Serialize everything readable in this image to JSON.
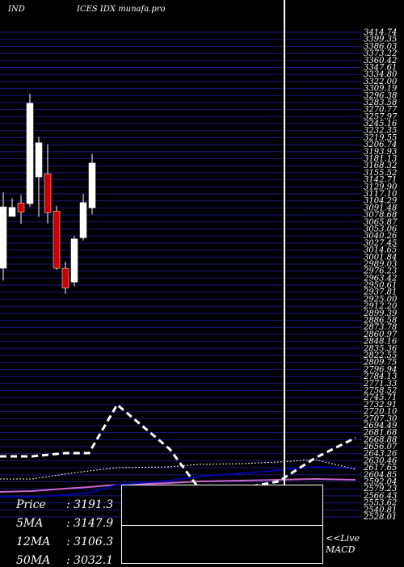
{
  "header": {
    "left_label": "IND",
    "right_label": "ICES IDX  munafa.pro"
  },
  "colors": {
    "background": "#000000",
    "grid": "#1a1a80",
    "bull": "#ffffff",
    "bear": "#cc0000",
    "ma_short": "#0000aa",
    "ma_long": "#cc66cc"
  },
  "chart_data": {
    "type": "candlestick",
    "ylim": [
      2512,
      3420
    ],
    "y_ticks": [
      "3414.74",
      "3399.35",
      "3386.03",
      "3373.22",
      "3360.42",
      "3347.61",
      "3334.80",
      "3322.00",
      "3309.19",
      "3296.38",
      "3283.58",
      "3270.77",
      "3257.97",
      "3245.16",
      "3232.35",
      "3219.55",
      "3206.74",
      "3193.93",
      "3181.13",
      "3168.32",
      "3155.52",
      "3142.71",
      "3129.90",
      "3117.10",
      "3104.29",
      "3091.48",
      "3078.68",
      "3065.87",
      "3053.06",
      "3040.26",
      "3027.45",
      "3014.65",
      "3001.84",
      "2989.03",
      "2976.23",
      "2963.42",
      "2950.61",
      "2937.81",
      "2925.00",
      "2912.20",
      "2899.39",
      "2886.58",
      "2873.78",
      "2860.97",
      "2848.16",
      "2835.36",
      "2822.55",
      "2809.75",
      "2796.94",
      "2784.13",
      "2771.33",
      "2758.52",
      "2745.71",
      "2732.91",
      "2720.10",
      "2707.30",
      "2694.49",
      "2681.68",
      "2668.88",
      "2656.07",
      "2643.26",
      "2630.46",
      "2617.65",
      "2604.85",
      "2592.04",
      "2579.23",
      "2566.43",
      "2553.62",
      "2540.81",
      "2528.01"
    ],
    "candles": [
      {
        "open": 3093,
        "high": 3120,
        "low": 2955,
        "close": 2978,
        "bull": true
      },
      {
        "open": 3092,
        "high": 3109,
        "low": 3075,
        "close": 3075,
        "bull": true
      },
      {
        "open": 3100,
        "high": 3115,
        "low": 3061,
        "close": 3083,
        "bull": false
      },
      {
        "open": 3099,
        "high": 3305,
        "low": 3093,
        "close": 3287,
        "bull": true
      },
      {
        "open": 3149,
        "high": 3224,
        "low": 3074,
        "close": 3213,
        "bull": true
      },
      {
        "open": 3155,
        "high": 3210,
        "low": 3062,
        "close": 3082,
        "bull": false
      },
      {
        "open": 3085,
        "high": 3095,
        "low": 2975,
        "close": 2978,
        "bull": false
      },
      {
        "open": 2978,
        "high": 2990,
        "low": 2930,
        "close": 2941,
        "bull": false
      },
      {
        "open": 2952,
        "high": 3038,
        "low": 2944,
        "close": 3033,
        "bull": true
      },
      {
        "open": 3035,
        "high": 3117,
        "low": 3030,
        "close": 3101,
        "bull": true
      },
      {
        "open": 3175,
        "high": 3192,
        "low": 3079,
        "close": 3091,
        "bull": true
      }
    ],
    "indicators": {
      "macd": [
        565,
        565,
        561,
        561,
        501,
        556,
        603,
        604,
        596,
        567,
        542
      ],
      "signal": [
        593,
        593,
        587,
        583,
        579,
        578,
        575,
        574,
        572,
        569,
        581
      ],
      "ma_short": [
        615,
        615,
        613,
        610,
        600,
        595,
        590,
        586,
        582,
        578,
        580
      ],
      "ma_long": [
        609,
        608,
        605,
        603,
        600,
        598,
        596,
        595,
        594,
        593,
        594
      ]
    },
    "summary": [
      {
        "label": "Price",
        "value": ": 3191.3"
      },
      {
        "label": "5MA",
        "value": ": 3147.9"
      },
      {
        "label": "12MA",
        "value": ": 3106.3"
      },
      {
        "label": "50MA",
        "value": ": 3032.1"
      }
    ],
    "macd_label": "<<Live\nMACD"
  }
}
